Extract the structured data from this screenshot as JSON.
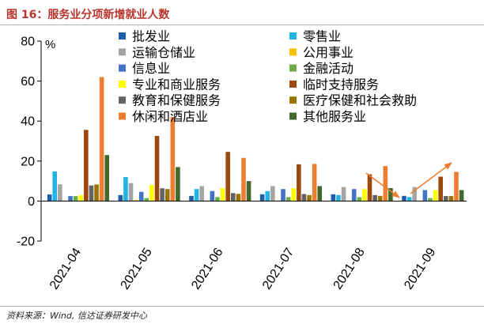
{
  "source": "资料来源：Wind, 信达证券研发中心",
  "chart_data": {
    "type": "bar",
    "title": "图 16：服务业分项新增就业人数",
    "ylabel": "%",
    "categories": [
      "2021-04",
      "2021-05",
      "2021-06",
      "2021-07",
      "2021-08",
      "2021-09"
    ],
    "ylim": [
      -20,
      80
    ],
    "yticks": [
      80,
      60,
      40,
      20,
      0,
      -20
    ],
    "grid": false,
    "legend": "top",
    "annotation_color": "#ED7D31",
    "series": [
      {
        "name": "批发业",
        "color": "#1F5FA9",
        "values": [
          3.3,
          3.0,
          2.6,
          3.4,
          3.4,
          2.6
        ]
      },
      {
        "name": "零售业",
        "color": "#22B3E6",
        "values": [
          14.8,
          12.0,
          6.0,
          5.0,
          3.0,
          2.0
        ]
      },
      {
        "name": "运输仓储业",
        "color": "#A5A5A5",
        "values": [
          8.4,
          9.0,
          7.5,
          7.5,
          7.0,
          7.0
        ]
      },
      {
        "name": "公用事业",
        "color": "#FFC000",
        "values": [
          0.3,
          0.5,
          0.3,
          0.3,
          0.3,
          0.3
        ]
      },
      {
        "name": "信息业",
        "color": "#4472C4",
        "values": [
          2.5,
          4.6,
          5.0,
          6.0,
          6.0,
          5.5
        ]
      },
      {
        "name": "金融活动",
        "color": "#70AD47",
        "values": [
          2.5,
          1.5,
          2.0,
          2.0,
          2.0,
          1.5
        ]
      },
      {
        "name": "专业和商业服务",
        "color": "#FFFF00",
        "values": [
          3.0,
          8.0,
          6.5,
          6.5,
          6.0,
          5.5
        ]
      },
      {
        "name": "临时支持服务",
        "color": "#9E480E",
        "values": [
          35.6,
          32.6,
          24.6,
          18.4,
          13.4,
          12.2
        ]
      },
      {
        "name": "教育和保健服务",
        "color": "#636363",
        "values": [
          7.8,
          6.4,
          4.0,
          3.5,
          3.0,
          2.5
        ]
      },
      {
        "name": "医疗保健和社会救助",
        "color": "#997300",
        "values": [
          8.3,
          6.0,
          3.6,
          3.0,
          2.6,
          2.5
        ]
      },
      {
        "name": "休闲和酒店业",
        "color": "#ED7D31",
        "values": [
          62.0,
          42.0,
          21.6,
          18.6,
          17.5,
          14.6
        ]
      },
      {
        "name": "其他服务业",
        "color": "#43682B",
        "values": [
          23.0,
          17.0,
          10.0,
          7.5,
          6.5,
          5.5
        ]
      }
    ]
  }
}
